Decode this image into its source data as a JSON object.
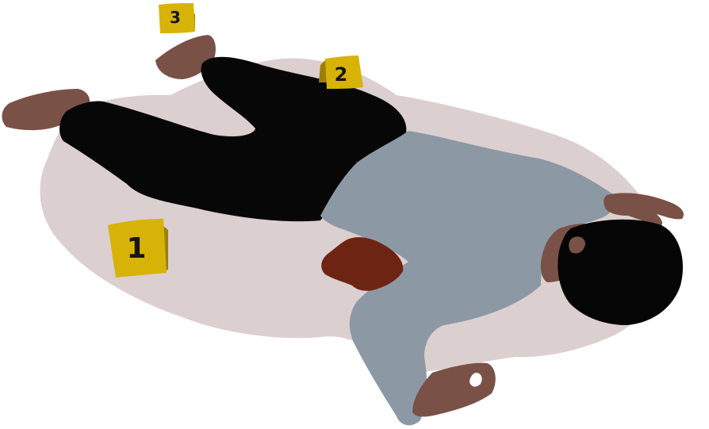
{
  "scene": {
    "markers": [
      {
        "label": "1"
      },
      {
        "label": "2"
      },
      {
        "label": "3"
      }
    ]
  },
  "colors": {
    "background": "#ffffff",
    "shadow": "#dccfcf",
    "skin": "#7a5147",
    "skin_dark": "#5e3c34",
    "pants": "#070707",
    "shirt": "#8c99a5",
    "hair": "#050505",
    "blood": "#6e2412",
    "marker_face": "#d7b308",
    "marker_side": "#9c7f08",
    "marker_text": "#161616"
  },
  "icons": [
    "evidence-marker-icon",
    "body-figure-icon",
    "blood-stain-icon"
  ]
}
